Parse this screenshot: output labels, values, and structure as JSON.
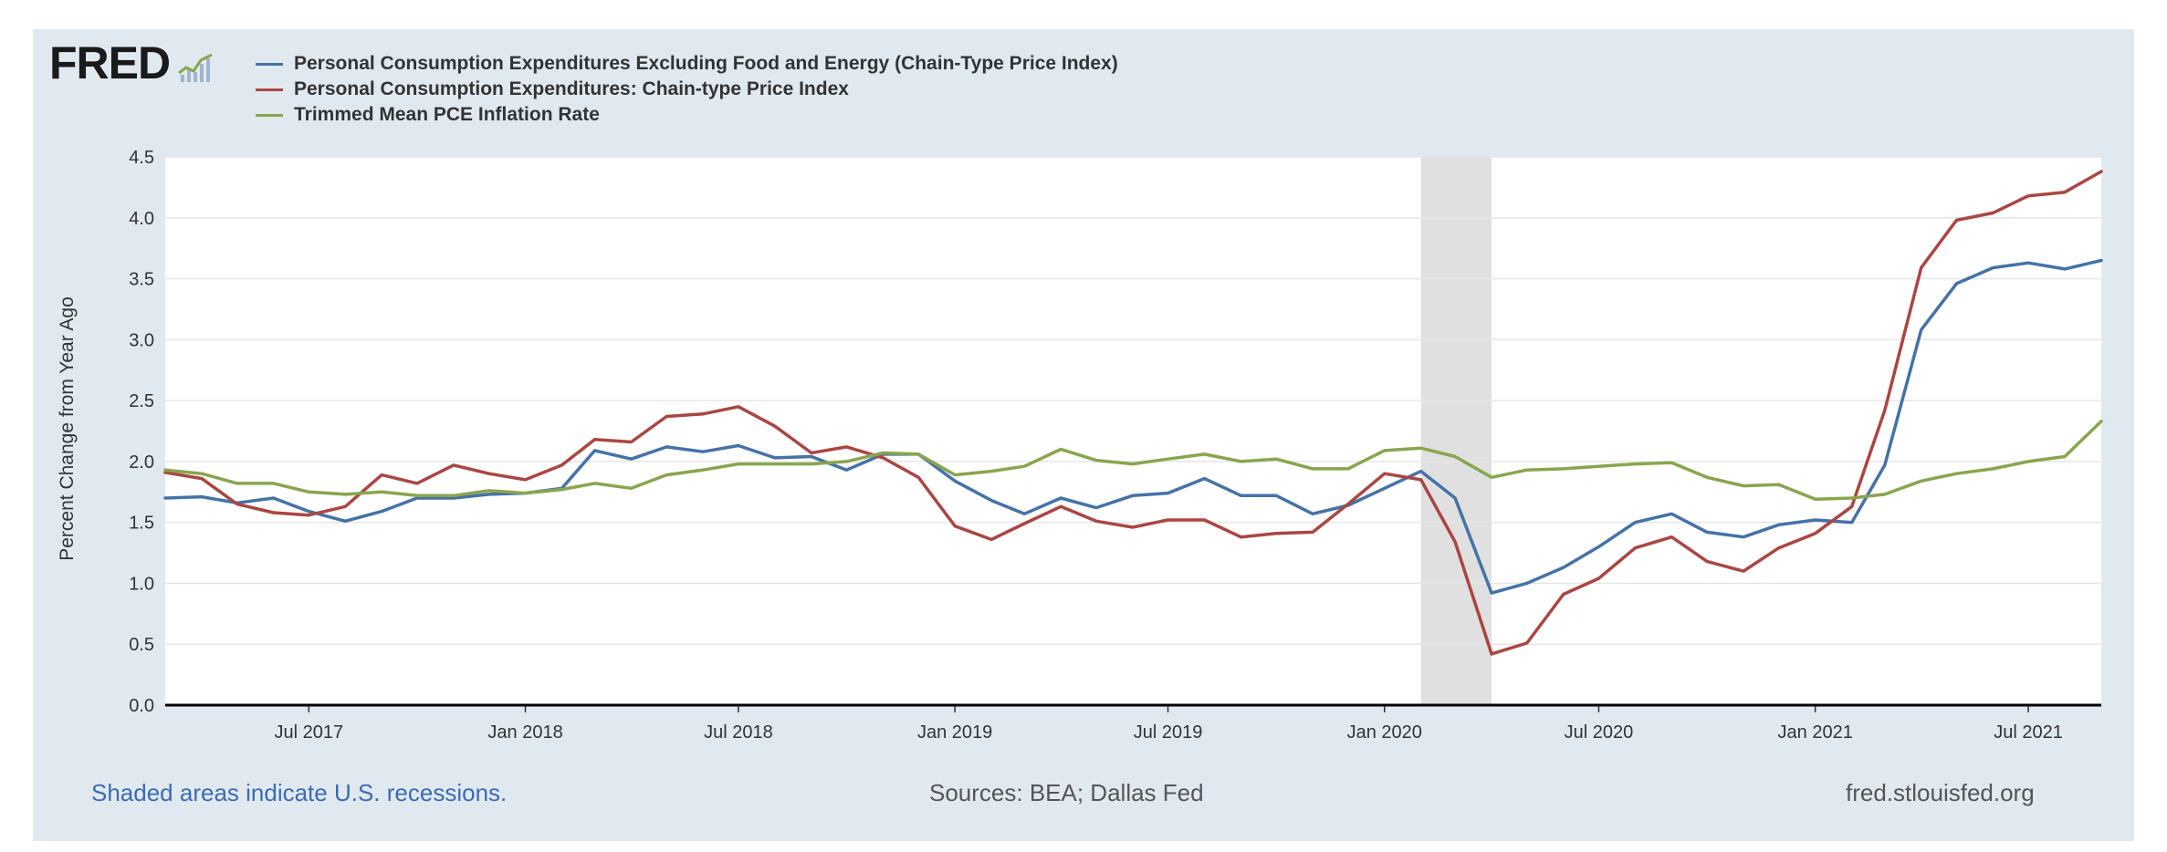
{
  "logo": {
    "text": "FRED",
    "icon": "chart-line-icon"
  },
  "legend": [
    {
      "label": "Personal Consumption Expenditures Excluding Food and Energy (Chain-Type Price Index)",
      "color": "#4572a7"
    },
    {
      "label": "Personal Consumption Expenditures: Chain-type Price Index",
      "color": "#aa4643"
    },
    {
      "label": "Trimmed Mean PCE Inflation Rate",
      "color": "#89a54e"
    }
  ],
  "footer": {
    "recession_note": "Shaded areas indicate U.S. recessions.",
    "sources": "Sources: BEA; Dallas Fed",
    "site": "fred.stlouisfed.org"
  },
  "chart_data": {
    "type": "line",
    "title": "",
    "xlabel": "",
    "ylabel": "Percent Change from Year Ago",
    "ylim": [
      0,
      4.5
    ],
    "yticks": [
      "0.0",
      "0.5",
      "1.0",
      "1.5",
      "2.0",
      "2.5",
      "3.0",
      "3.5",
      "4.0",
      "4.5"
    ],
    "xticks": [
      {
        "label": "Jul 2017",
        "date": "2017-07"
      },
      {
        "label": "Jan 2018",
        "date": "2018-01"
      },
      {
        "label": "Jul 2018",
        "date": "2018-07"
      },
      {
        "label": "Jan 2019",
        "date": "2019-01"
      },
      {
        "label": "Jul 2019",
        "date": "2019-07"
      },
      {
        "label": "Jan 2020",
        "date": "2020-01"
      },
      {
        "label": "Jul 2020",
        "date": "2020-07"
      },
      {
        "label": "Jan 2021",
        "date": "2021-01"
      },
      {
        "label": "Jul 2021",
        "date": "2021-07"
      }
    ],
    "x": [
      "2017-03",
      "2017-04",
      "2017-05",
      "2017-06",
      "2017-07",
      "2017-08",
      "2017-09",
      "2017-10",
      "2017-11",
      "2017-12",
      "2018-01",
      "2018-02",
      "2018-03",
      "2018-04",
      "2018-05",
      "2018-06",
      "2018-07",
      "2018-08",
      "2018-09",
      "2018-10",
      "2018-11",
      "2018-12",
      "2019-01",
      "2019-02",
      "2019-03",
      "2019-04",
      "2019-05",
      "2019-06",
      "2019-07",
      "2019-08",
      "2019-09",
      "2019-10",
      "2019-11",
      "2019-12",
      "2020-01",
      "2020-02",
      "2020-03",
      "2020-04",
      "2020-05",
      "2020-06",
      "2020-07",
      "2020-08",
      "2020-09",
      "2020-10",
      "2020-11",
      "2020-12",
      "2021-01",
      "2021-02",
      "2021-03",
      "2021-04",
      "2021-05",
      "2021-06",
      "2021-07",
      "2021-08",
      "2021-09"
    ],
    "series": [
      {
        "name": "Personal Consumption Expenditures Excluding Food and Energy (Chain-Type Price Index)",
        "color": "#4572a7",
        "values": [
          1.7,
          1.71,
          1.66,
          1.7,
          1.59,
          1.51,
          1.59,
          1.7,
          1.7,
          1.73,
          1.74,
          1.78,
          2.09,
          2.02,
          2.12,
          2.08,
          2.13,
          2.03,
          2.04,
          1.93,
          2.06,
          2.06,
          1.84,
          1.68,
          1.57,
          1.7,
          1.62,
          1.72,
          1.74,
          1.86,
          1.72,
          1.72,
          1.57,
          1.64,
          1.78,
          1.92,
          1.7,
          0.92,
          1.0,
          1.13,
          1.3,
          1.5,
          1.57,
          1.42,
          1.38,
          1.48,
          1.52,
          1.5,
          1.97,
          3.08,
          3.46,
          3.59,
          3.63,
          3.58,
          3.65
        ]
      },
      {
        "name": "Personal Consumption Expenditures: Chain-type Price Index",
        "color": "#aa4643",
        "values": [
          1.91,
          1.86,
          1.65,
          1.58,
          1.56,
          1.63,
          1.89,
          1.82,
          1.97,
          1.9,
          1.85,
          1.97,
          2.18,
          2.16,
          2.37,
          2.39,
          2.45,
          2.29,
          2.07,
          2.12,
          2.03,
          1.87,
          1.47,
          1.36,
          1.49,
          1.63,
          1.51,
          1.46,
          1.52,
          1.52,
          1.38,
          1.41,
          1.42,
          1.65,
          1.9,
          1.85,
          1.34,
          0.42,
          0.51,
          0.91,
          1.04,
          1.29,
          1.38,
          1.18,
          1.1,
          1.29,
          1.41,
          1.63,
          2.42,
          3.59,
          3.98,
          4.04,
          4.18,
          4.21,
          4.38
        ]
      },
      {
        "name": "Trimmed Mean PCE Inflation Rate",
        "color": "#89a54e",
        "values": [
          1.93,
          1.9,
          1.82,
          1.82,
          1.75,
          1.73,
          1.75,
          1.72,
          1.72,
          1.76,
          1.74,
          1.77,
          1.82,
          1.78,
          1.89,
          1.93,
          1.98,
          1.98,
          1.98,
          2.0,
          2.07,
          2.06,
          1.89,
          1.92,
          1.96,
          2.1,
          2.01,
          1.98,
          2.02,
          2.06,
          2.0,
          2.02,
          1.94,
          1.94,
          2.09,
          2.11,
          2.04,
          1.87,
          1.93,
          1.94,
          1.96,
          1.98,
          1.99,
          1.87,
          1.8,
          1.81,
          1.69,
          1.7,
          1.73,
          1.84,
          1.9,
          1.94,
          2.0,
          2.04,
          2.33
        ]
      }
    ],
    "recessions": [
      {
        "start": "2020-02",
        "end": "2020-04"
      }
    ],
    "grid": true,
    "legend_position": "top-left"
  }
}
